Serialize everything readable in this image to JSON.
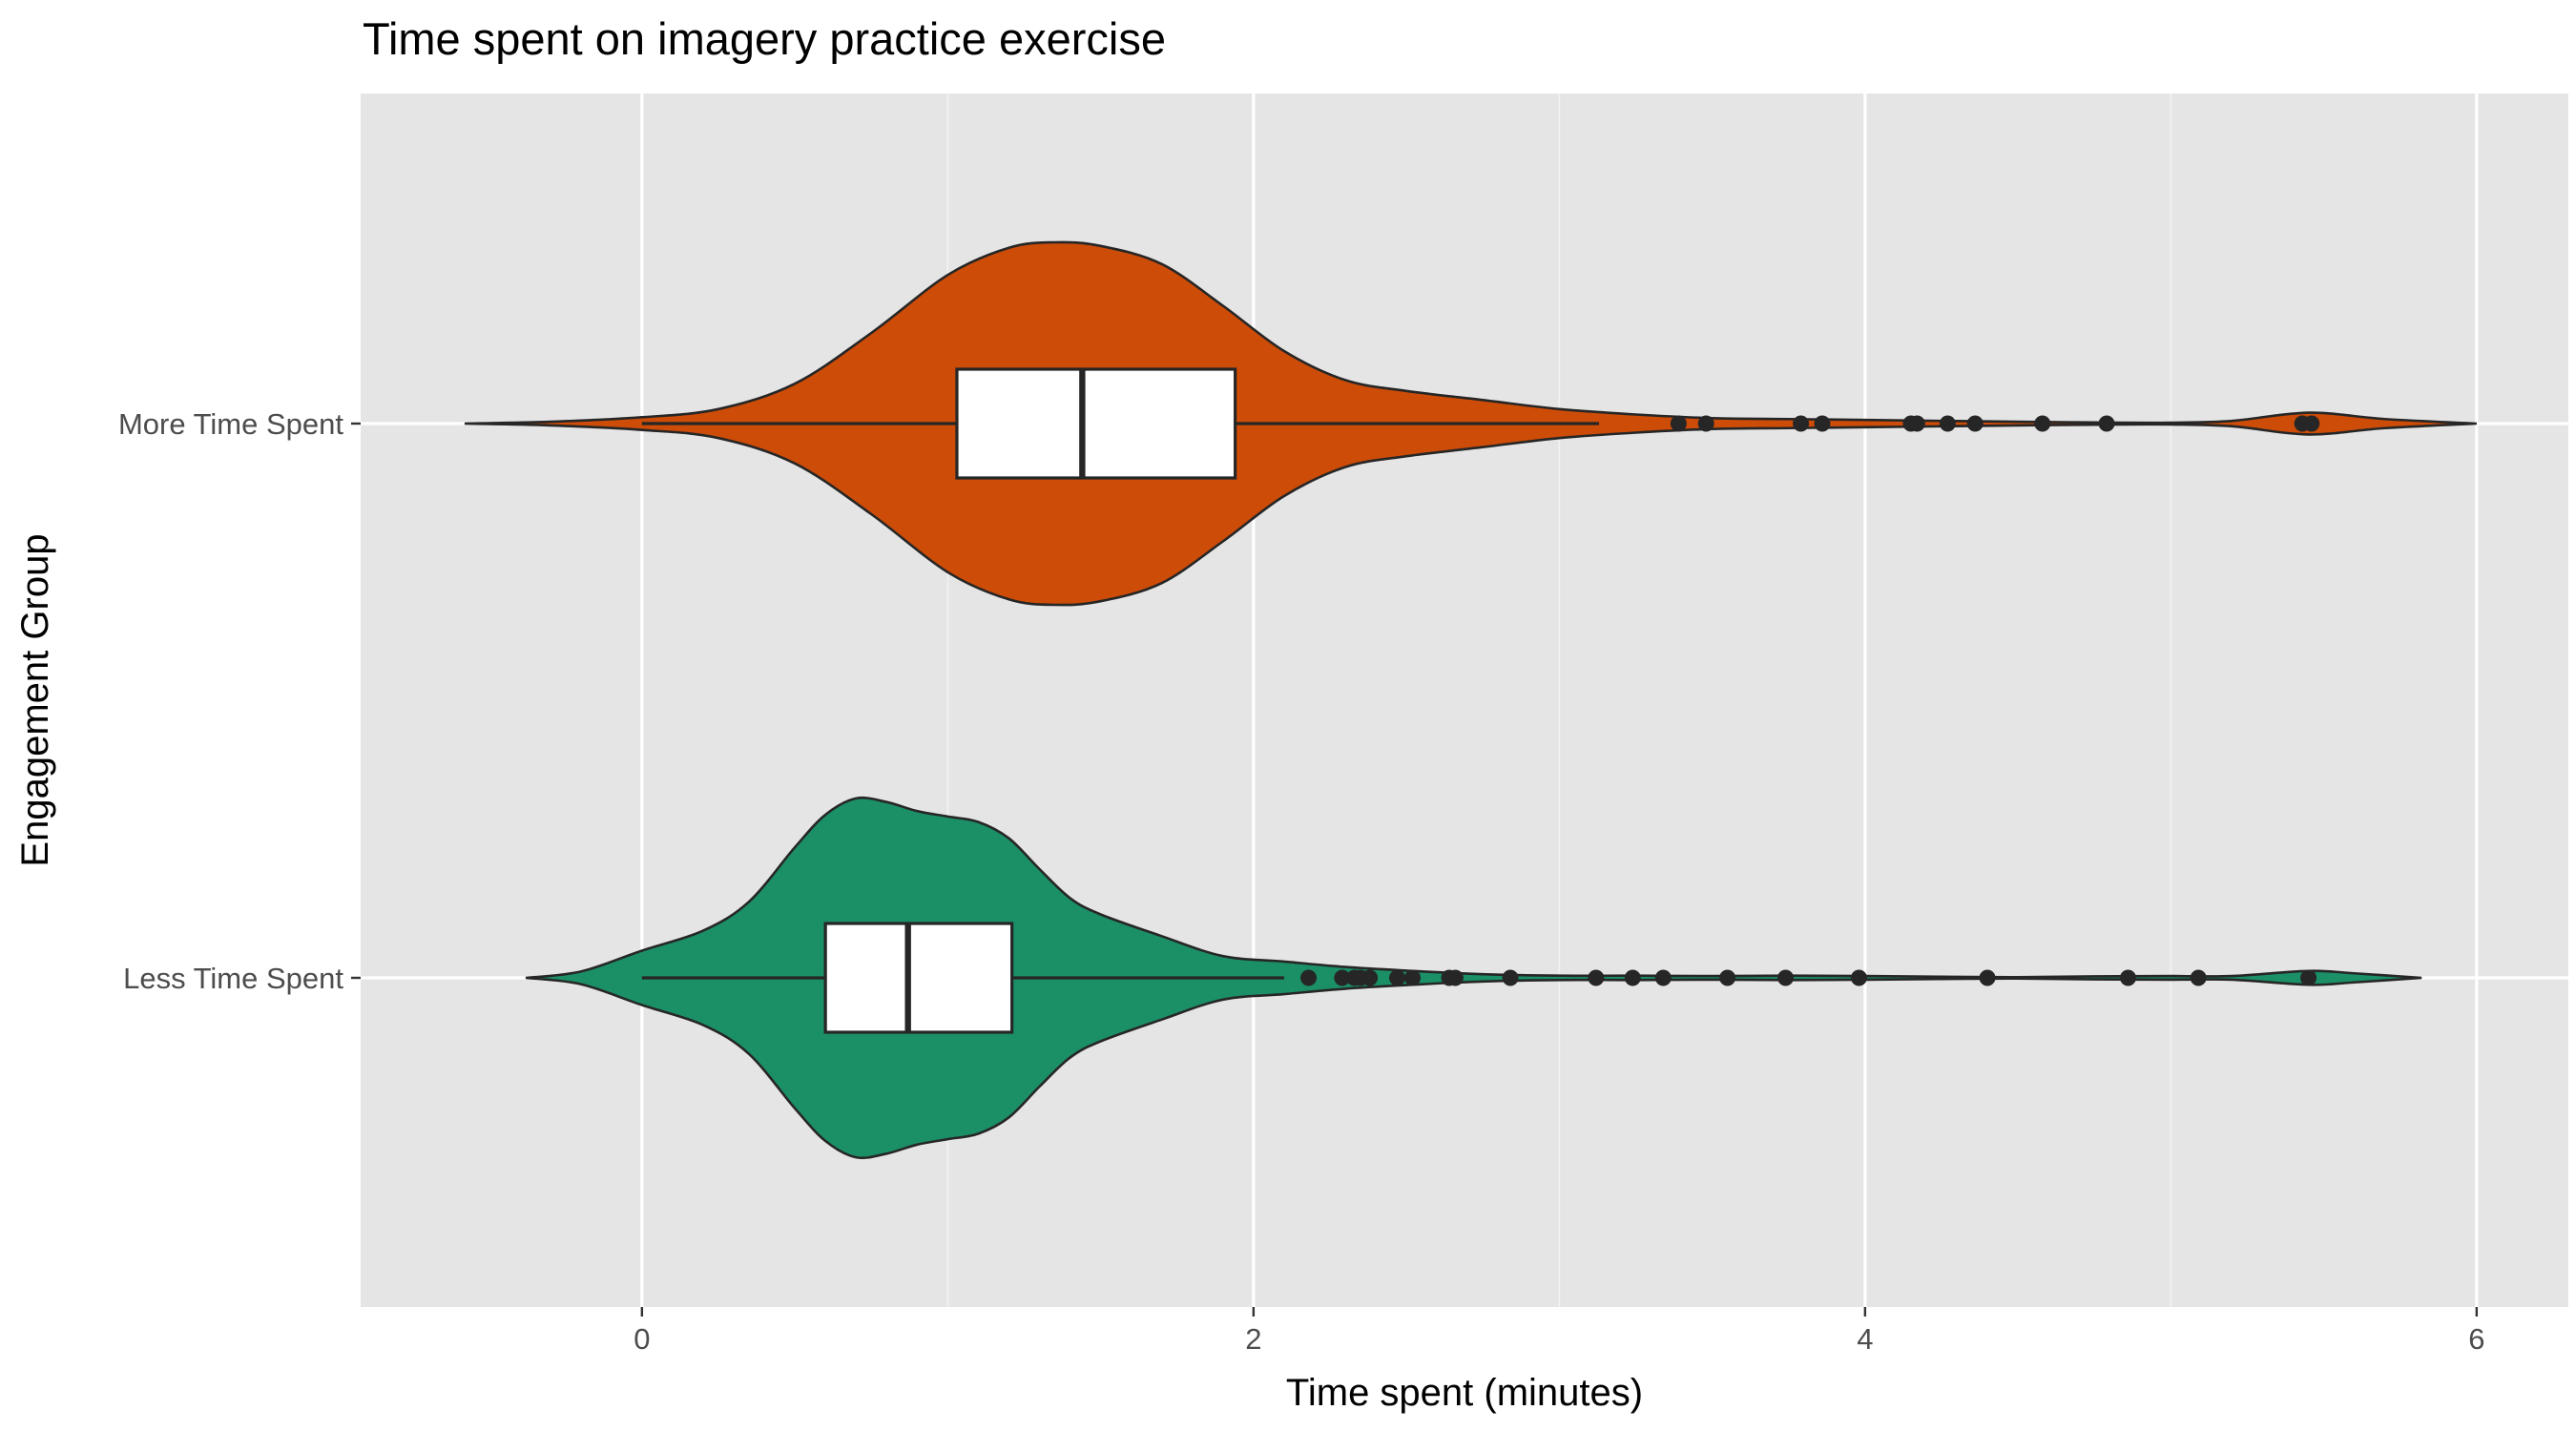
{
  "chart_data": {
    "type": "violin",
    "title": "Time spent on imagery practice exercise",
    "xlabel": "Time spent (minutes)",
    "ylabel": "Engagement Group",
    "xlim": [
      -0.92,
      6.3
    ],
    "x_ticks": [
      0,
      2,
      4,
      6
    ],
    "x_minor_ticks": [
      1,
      3,
      5
    ],
    "grid": true,
    "orientation": "horizontal",
    "groups": [
      {
        "name": "More Time Spent",
        "color": "#CC4C08",
        "violin_range": [
          -0.58,
          6.0
        ],
        "density_half_width": [
          [
            -0.58,
            0
          ],
          [
            -0.3,
            0.01
          ],
          [
            0,
            0.035
          ],
          [
            0.25,
            0.08
          ],
          [
            0.5,
            0.22
          ],
          [
            0.75,
            0.5
          ],
          [
            1.0,
            0.82
          ],
          [
            1.2,
            0.97
          ],
          [
            1.35,
            1.0
          ],
          [
            1.5,
            0.98
          ],
          [
            1.7,
            0.88
          ],
          [
            1.9,
            0.65
          ],
          [
            2.1,
            0.4
          ],
          [
            2.3,
            0.24
          ],
          [
            2.5,
            0.18
          ],
          [
            2.75,
            0.13
          ],
          [
            3.0,
            0.08
          ],
          [
            3.25,
            0.05
          ],
          [
            3.5,
            0.03
          ],
          [
            3.75,
            0.025
          ],
          [
            4.0,
            0.02
          ],
          [
            4.25,
            0.015
          ],
          [
            4.5,
            0.01
          ],
          [
            4.75,
            0.006
          ],
          [
            5.0,
            0.005
          ],
          [
            5.2,
            0.015
          ],
          [
            5.45,
            0.06
          ],
          [
            5.7,
            0.025
          ],
          [
            6.0,
            0
          ]
        ],
        "whisker_low": 0.0,
        "q1": 1.03,
        "median": 1.44,
        "q3": 1.94,
        "whisker_high": 3.13,
        "outliers": [
          3.39,
          3.48,
          3.79,
          3.86,
          4.15,
          4.17,
          4.27,
          4.36,
          4.58,
          4.79,
          5.43,
          5.46
        ]
      },
      {
        "name": "Less Time Spent",
        "color": "#1B9066",
        "violin_range": [
          -0.38,
          5.82
        ],
        "density_half_width": [
          [
            -0.38,
            0
          ],
          [
            -0.2,
            0.035
          ],
          [
            0,
            0.15
          ],
          [
            0.2,
            0.26
          ],
          [
            0.35,
            0.42
          ],
          [
            0.5,
            0.72
          ],
          [
            0.6,
            0.9
          ],
          [
            0.7,
            0.99
          ],
          [
            0.8,
            0.97
          ],
          [
            0.9,
            0.92
          ],
          [
            1.0,
            0.89
          ],
          [
            1.1,
            0.86
          ],
          [
            1.2,
            0.77
          ],
          [
            1.3,
            0.6
          ],
          [
            1.4,
            0.44
          ],
          [
            1.5,
            0.35
          ],
          [
            1.7,
            0.23
          ],
          [
            1.9,
            0.12
          ],
          [
            2.1,
            0.09
          ],
          [
            2.3,
            0.06
          ],
          [
            2.5,
            0.04
          ],
          [
            2.75,
            0.02
          ],
          [
            3.0,
            0.012
          ],
          [
            3.25,
            0.012
          ],
          [
            3.5,
            0.01
          ],
          [
            3.75,
            0.012
          ],
          [
            4.0,
            0.01
          ],
          [
            4.25,
            0.006
          ],
          [
            4.5,
            0.004
          ],
          [
            4.75,
            0.008
          ],
          [
            5.0,
            0.01
          ],
          [
            5.2,
            0.01
          ],
          [
            5.45,
            0.038
          ],
          [
            5.6,
            0.025
          ],
          [
            5.82,
            0
          ]
        ],
        "whisker_low": 0.0,
        "q1": 0.6,
        "median": 0.87,
        "q3": 1.21,
        "whisker_high": 2.1,
        "outliers": [
          2.18,
          2.29,
          2.33,
          2.35,
          2.38,
          2.47,
          2.52,
          2.64,
          2.66,
          2.84,
          3.12,
          3.24,
          3.34,
          3.55,
          3.74,
          3.98,
          4.4,
          4.86,
          5.09,
          5.45
        ]
      }
    ]
  }
}
